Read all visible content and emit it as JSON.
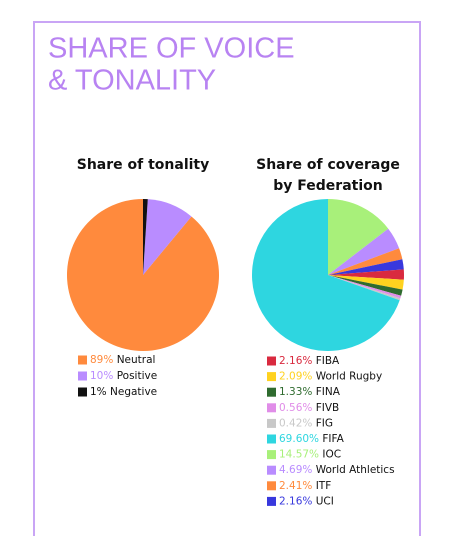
{
  "title": [
    "SHARE OF VOICE",
    "& TONALITY"
  ],
  "chart_data": [
    {
      "type": "pie",
      "title": "Share of tonality",
      "categories": [
        "Neutral",
        "Positive",
        "Negative"
      ],
      "values": [
        89,
        10,
        1
      ],
      "value_labels": [
        "89%",
        "10%",
        "1%"
      ],
      "colors": [
        "#ff8a3d",
        "#b98cff",
        "#111111"
      ]
    },
    {
      "type": "pie",
      "title": [
        "Share of coverage",
        "by Federation"
      ],
      "categories": [
        "FIBA",
        "World Rugby",
        "FINA",
        "FIVB",
        "FIG",
        "FIFA",
        "IOC",
        "World Athletics",
        "ITF",
        "UCI"
      ],
      "values": [
        2.16,
        2.09,
        1.33,
        0.56,
        0.42,
        69.6,
        14.57,
        4.69,
        2.41,
        2.16
      ],
      "value_labels": [
        "2.16%",
        "2.09%",
        "1.33%",
        "0.56%",
        "0.42%",
        "69.60%",
        "14.57%",
        "4.69%",
        "2.41%",
        "2.16%"
      ],
      "colors": [
        "#d92a3f",
        "#ffd21f",
        "#2f6b2f",
        "#e08de8",
        "#c8c8c8",
        "#2ed6e0",
        "#a8f07a",
        "#b98cff",
        "#ff8a3d",
        "#3838dd"
      ]
    }
  ]
}
